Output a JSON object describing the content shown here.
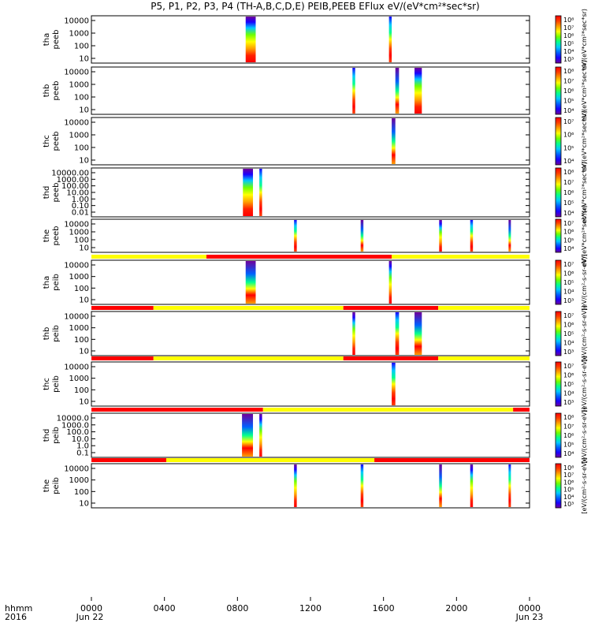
{
  "title": "P5, P1, P2, P3, P4 (TH-A,B,C,D,E) PEIB,PEEB EFlux eV/(eV*cm²*sec*sr)",
  "colors": {
    "frame": "#000000",
    "bar_red": "#ff0000",
    "bar_yellow": "#ffff00",
    "colormap": [
      "#70009a",
      "#1a00ff",
      "#0060ff",
      "#00c8ff",
      "#00ff90",
      "#70ff00",
      "#ffff00",
      "#ffa000",
      "#ff4000",
      "#ff0000"
    ]
  },
  "xaxis": {
    "ticks": [
      "0000",
      "0400",
      "0800",
      "1200",
      "1600",
      "2000",
      "0000"
    ],
    "date_left": "Jun 22",
    "date_right": "Jun 23",
    "corner_label_1": "hhmm",
    "corner_label_2": "2016",
    "range_hours": [
      0,
      24
    ]
  },
  "colorbar_label_electron": "eV/(eV*cm²*sec*sr)",
  "colorbar_label_ion": "[eV/(cm²-s-sr-eV)]",
  "chart_data": {
    "type": "heatmap",
    "x_units": "hours UT, 2016-06-22",
    "panels": [
      {
        "label_line1": "tha",
        "label_line2": "peeb",
        "ylabels": [
          "10000",
          "1000",
          "100",
          "10"
        ],
        "cbar": [
          "10⁸",
          "10⁷",
          "10⁶",
          "10⁵",
          "10⁴",
          "10³"
        ],
        "bursts": [
          [
            8.45,
            9.0,
            "mixed"
          ],
          [
            16.3,
            16.45,
            "mixed"
          ]
        ]
      },
      {
        "label_line1": "thb",
        "label_line2": "peeb",
        "ylabels": [
          "10000",
          "1000",
          "100",
          "10"
        ],
        "cbar": [
          "10⁸",
          "10⁷",
          "10⁶",
          "10⁵",
          "10⁴"
        ],
        "bursts": [
          [
            14.3,
            14.45,
            "mixed"
          ],
          [
            16.65,
            16.85,
            "mixed"
          ],
          [
            17.7,
            18.1,
            "mixed"
          ]
        ]
      },
      {
        "label_line1": "thc",
        "label_line2": "peeb",
        "ylabels": [
          "10000",
          "1000",
          "100",
          "10"
        ],
        "cbar": [
          "10⁷",
          "10⁶",
          "10⁵",
          "10⁴"
        ],
        "bursts": [
          [
            16.45,
            16.65,
            "mixed"
          ]
        ]
      },
      {
        "label_line1": "thd",
        "label_line2": "peeb",
        "ylabels": [
          "10000.00",
          "1000.00",
          "100.00",
          "10.00",
          "1.00",
          "0.10",
          "0.01"
        ],
        "cbar": [
          "10⁸",
          "10⁷",
          "10⁶",
          "10⁵",
          "10⁴"
        ],
        "bursts": [
          [
            8.3,
            8.85,
            "mixed"
          ],
          [
            9.2,
            9.35,
            "mixed"
          ]
        ]
      },
      {
        "label_line1": "the",
        "label_line2": "peeb",
        "ylabels": [
          "10000",
          "1000",
          "100",
          "10"
        ],
        "cbar": [
          "10⁷",
          "10⁶",
          "10⁵",
          "10⁴"
        ],
        "bursts": [
          [
            11.1,
            11.25,
            "mixed"
          ],
          [
            14.75,
            14.9,
            "mixed"
          ],
          [
            19.05,
            19.2,
            "mixed"
          ],
          [
            20.75,
            20.9,
            "mixed"
          ],
          [
            22.85,
            22.95,
            "mixed"
          ]
        ]
      },
      {
        "label_line1": "tha",
        "label_line2": "peib",
        "ylabels": [
          "10000",
          "1000",
          "100",
          "10"
        ],
        "cbar": [
          "10⁷",
          "10⁶",
          "10⁵",
          "10⁴",
          "10³"
        ],
        "flags": [
          [
            0,
            6.3,
            "yellow"
          ],
          [
            6.3,
            16.45,
            "red"
          ],
          [
            16.45,
            24,
            "yellow"
          ]
        ],
        "bursts": [
          [
            8.45,
            9.0,
            "mixed"
          ],
          [
            16.3,
            16.45,
            "mixed"
          ]
        ]
      },
      {
        "label_line1": "thb",
        "label_line2": "peib",
        "ylabels": [
          "10000",
          "1000",
          "100",
          "10"
        ],
        "cbar": [
          "10⁷",
          "10⁶",
          "10⁵",
          "10⁴",
          "10³"
        ],
        "flags": [
          [
            0,
            3.4,
            "red"
          ],
          [
            3.4,
            13.8,
            "yellow"
          ],
          [
            13.8,
            19.0,
            "red"
          ],
          [
            19.0,
            24,
            "yellow"
          ]
        ],
        "bursts": [
          [
            14.3,
            14.45,
            "mixed"
          ],
          [
            16.65,
            16.85,
            "mixed"
          ],
          [
            17.7,
            18.1,
            "mixed"
          ]
        ]
      },
      {
        "label_line1": "thc",
        "label_line2": "peib",
        "ylabels": [
          "10000",
          "1000",
          "100",
          "10"
        ],
        "cbar": [
          "10⁷",
          "10⁶",
          "10⁵",
          "10⁴",
          "10³"
        ],
        "flags": [
          [
            0,
            3.4,
            "red"
          ],
          [
            3.4,
            13.8,
            "yellow"
          ],
          [
            13.8,
            19.0,
            "red"
          ],
          [
            19.0,
            24,
            "yellow"
          ]
        ],
        "bursts": [
          [
            16.45,
            16.65,
            "mixed"
          ]
        ]
      },
      {
        "label_line1": "thd",
        "label_line2": "peib",
        "ylabels": [
          "10000.0",
          "1000.0",
          "100.0",
          "10.0",
          "1.0",
          "0.1"
        ],
        "cbar": [
          "10⁸",
          "10⁷",
          "10⁶",
          "10⁵",
          "10⁴"
        ],
        "flags": [
          [
            0,
            9.4,
            "red"
          ],
          [
            9.4,
            23.1,
            "yellow"
          ],
          [
            23.1,
            24,
            "red"
          ]
        ],
        "bursts": [
          [
            8.25,
            8.85,
            "mixed"
          ],
          [
            9.2,
            9.35,
            "mixed"
          ]
        ]
      },
      {
        "label_line1": "the",
        "label_line2": "peib",
        "ylabels": [
          "10000",
          "1000",
          "100",
          "10"
        ],
        "cbar": [
          "10⁸",
          "10⁷",
          "10⁶",
          "10⁵",
          "10⁴",
          "10³"
        ],
        "flags": [
          [
            0,
            4.1,
            "red"
          ],
          [
            4.1,
            15.5,
            "yellow"
          ],
          [
            15.5,
            24,
            "red"
          ]
        ],
        "bursts": [
          [
            11.1,
            11.25,
            "mixed"
          ],
          [
            14.75,
            14.9,
            "mixed"
          ],
          [
            19.05,
            19.2,
            "mixed"
          ],
          [
            20.75,
            20.9,
            "mixed"
          ],
          [
            22.85,
            22.95,
            "mixed"
          ]
        ]
      }
    ]
  }
}
